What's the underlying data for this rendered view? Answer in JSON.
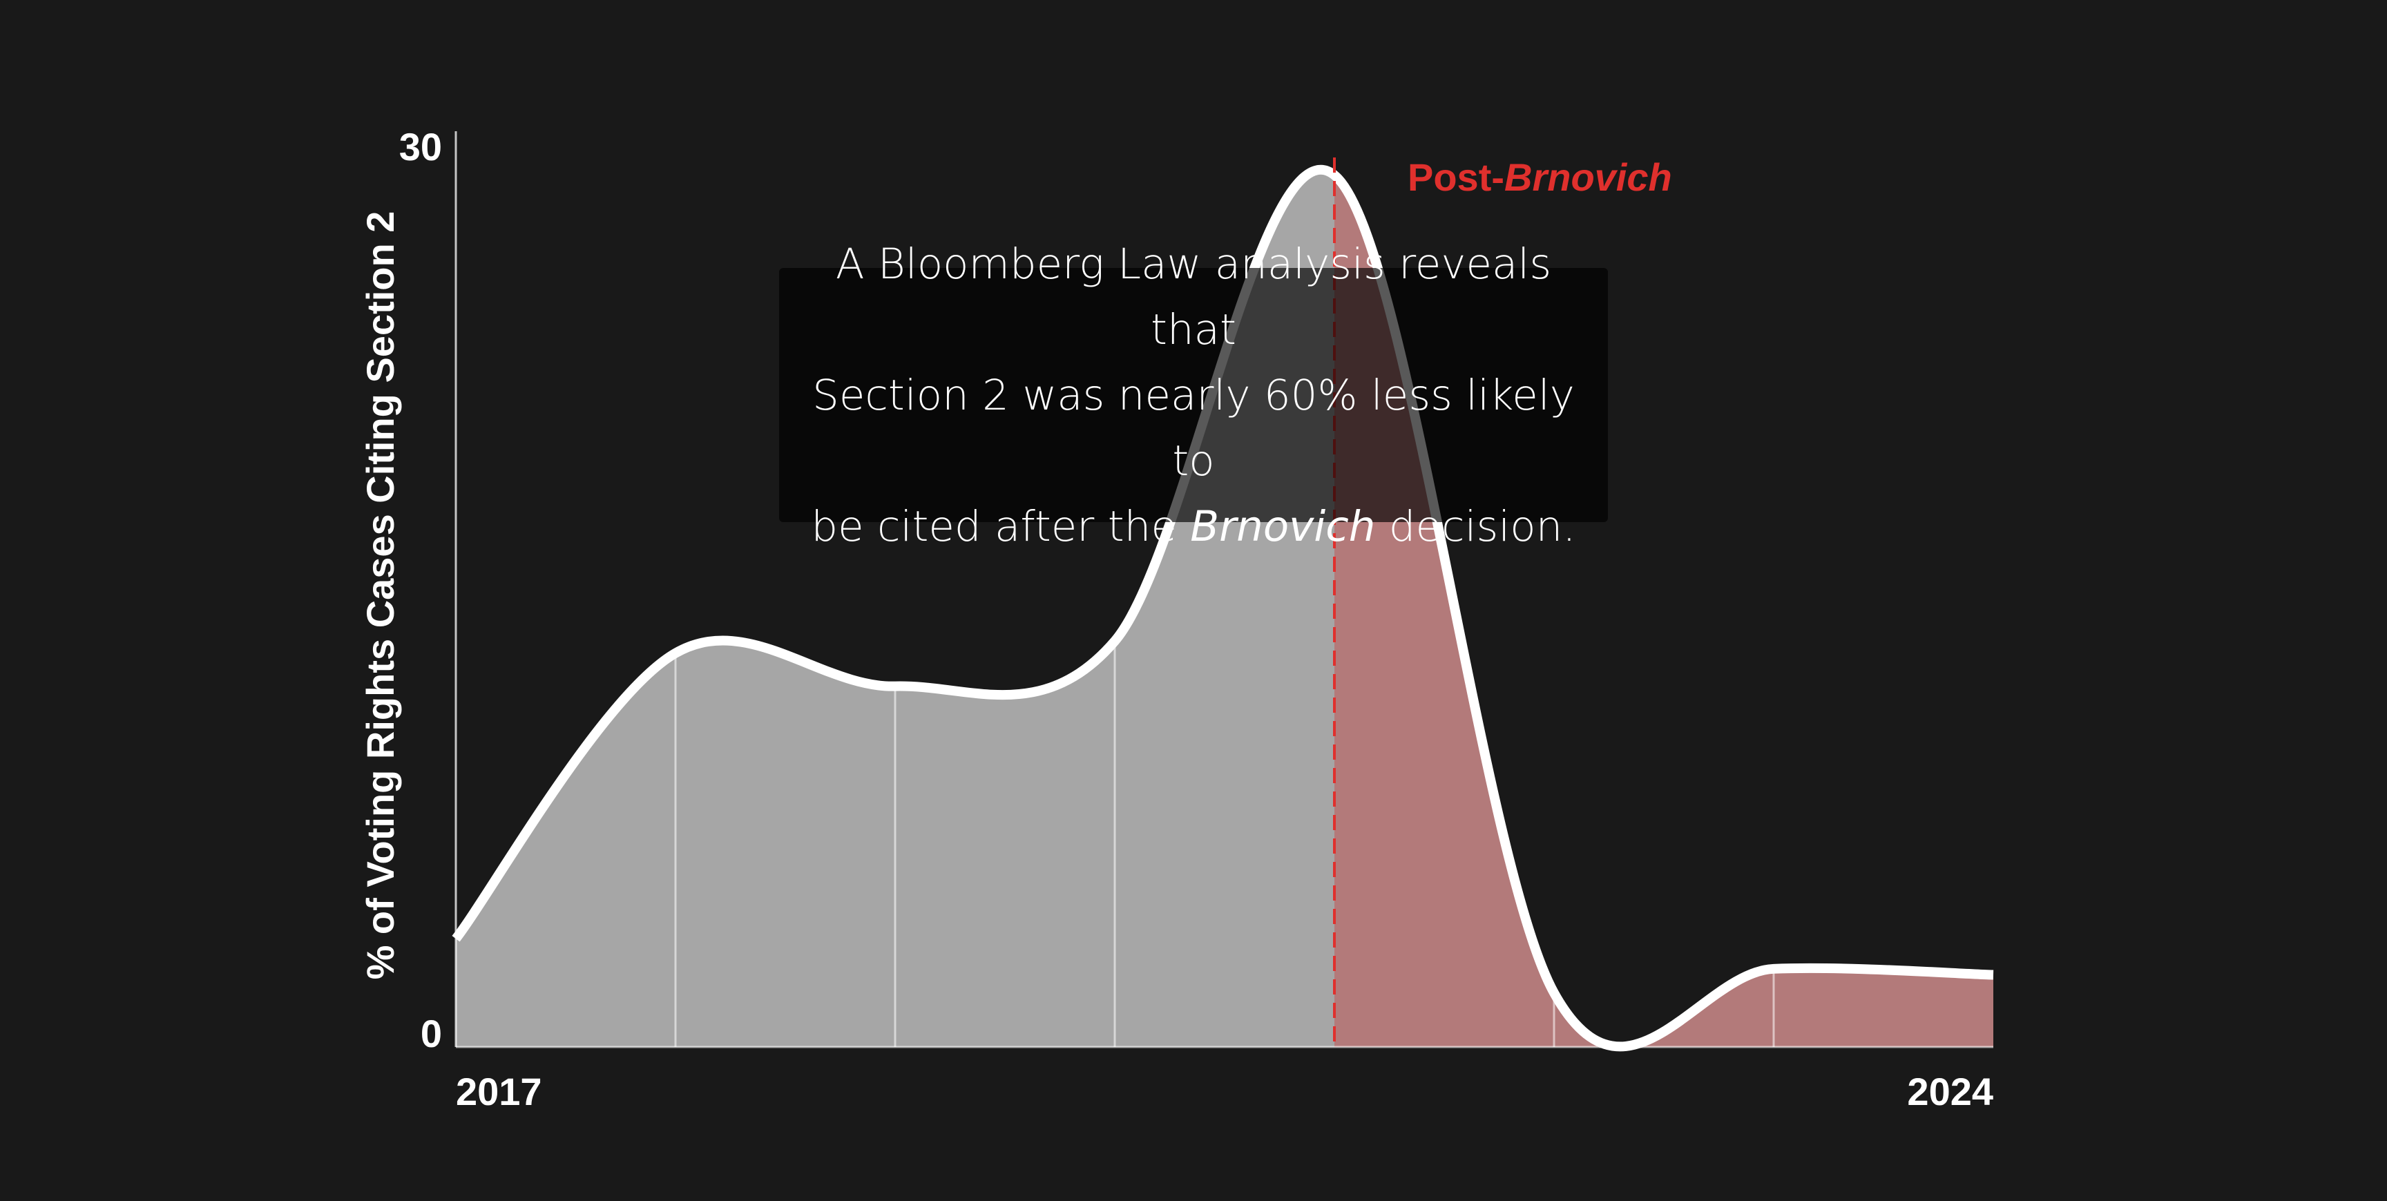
{
  "chart_data": {
    "type": "area",
    "title": "",
    "ylabel": "% of Voting Rights Cases Citing Section 2",
    "xlabel": "",
    "ylim": [
      0,
      30
    ],
    "y_tick_labels": [
      "30",
      "0"
    ],
    "x_tick_labels": [
      "2017",
      "2024"
    ],
    "x_range": [
      2017,
      2024
    ],
    "grid": false,
    "series": [
      {
        "x": [
          2017,
          2018,
          2019,
          2020,
          2021,
          2022,
          2023,
          2024
        ],
        "values": [
          3.6,
          13.1,
          12.0,
          13.5,
          29.0,
          1.8,
          2.6,
          2.4
        ]
      }
    ],
    "annotations": [
      {
        "type": "vline",
        "x": 2021,
        "label_prefix": "Post-",
        "label_italic": "Brnovich",
        "color": "#e0302d"
      }
    ],
    "colors": {
      "pre_fill": "#a6a6a6",
      "post_fill": "#b37a7a",
      "line": "#ffffff",
      "accent": "#e0302d",
      "background": "#191919"
    }
  },
  "overlay": {
    "line1": "A Bloomberg Law analysis reveals that",
    "line2": "Section 2 was nearly 60% less likely to",
    "line3_before": "be cited after the ",
    "line3_italic": "Brnovich",
    "line3_after": " decision."
  }
}
